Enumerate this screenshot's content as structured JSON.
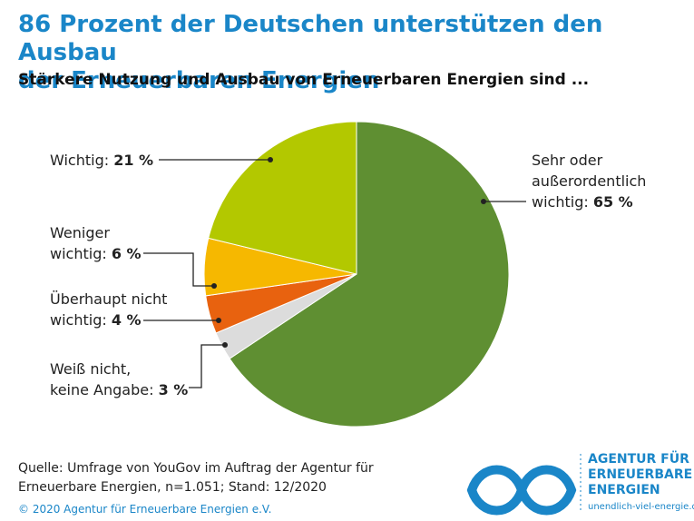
{
  "chart_data": {
    "type": "pie",
    "title": "86 Prozent der Deutschen unterstützen den Ausbau\nder Erneuerbaren Energien",
    "subtitle": "Stärkere Nutzung und Ausbau von Erneuerbaren Energien sind ...",
    "categories": [
      "Sehr oder\naußerordentlich\nwichtig:",
      "Weiß nicht,\nkeine Angabe:",
      "Überhaupt nicht\nwichtig:",
      "Weniger\nwichtig:",
      "Wichtig:"
    ],
    "values": [
      65,
      3,
      4,
      6,
      21
    ],
    "value_labels": [
      "65 %",
      "3 %",
      "4 %",
      "6 %",
      "21 %"
    ],
    "colors": [
      "#5f8f32",
      "#dcdcdc",
      "#e8620f",
      "#f6b800",
      "#b3c800"
    ]
  },
  "source": "Quelle: Umfrage von YouGov im Auftrag der Agentur für\nErneuerbare Energien, n=1.051; Stand: 12/2020",
  "copyright": "© 2020 Agentur für Erneuerbare Energien e.V.",
  "logo": {
    "lines": [
      "AGENTUR FÜR",
      "ERNEUERBARE",
      "ENERGIEN"
    ],
    "url": "unendlich-viel-energie.de"
  }
}
